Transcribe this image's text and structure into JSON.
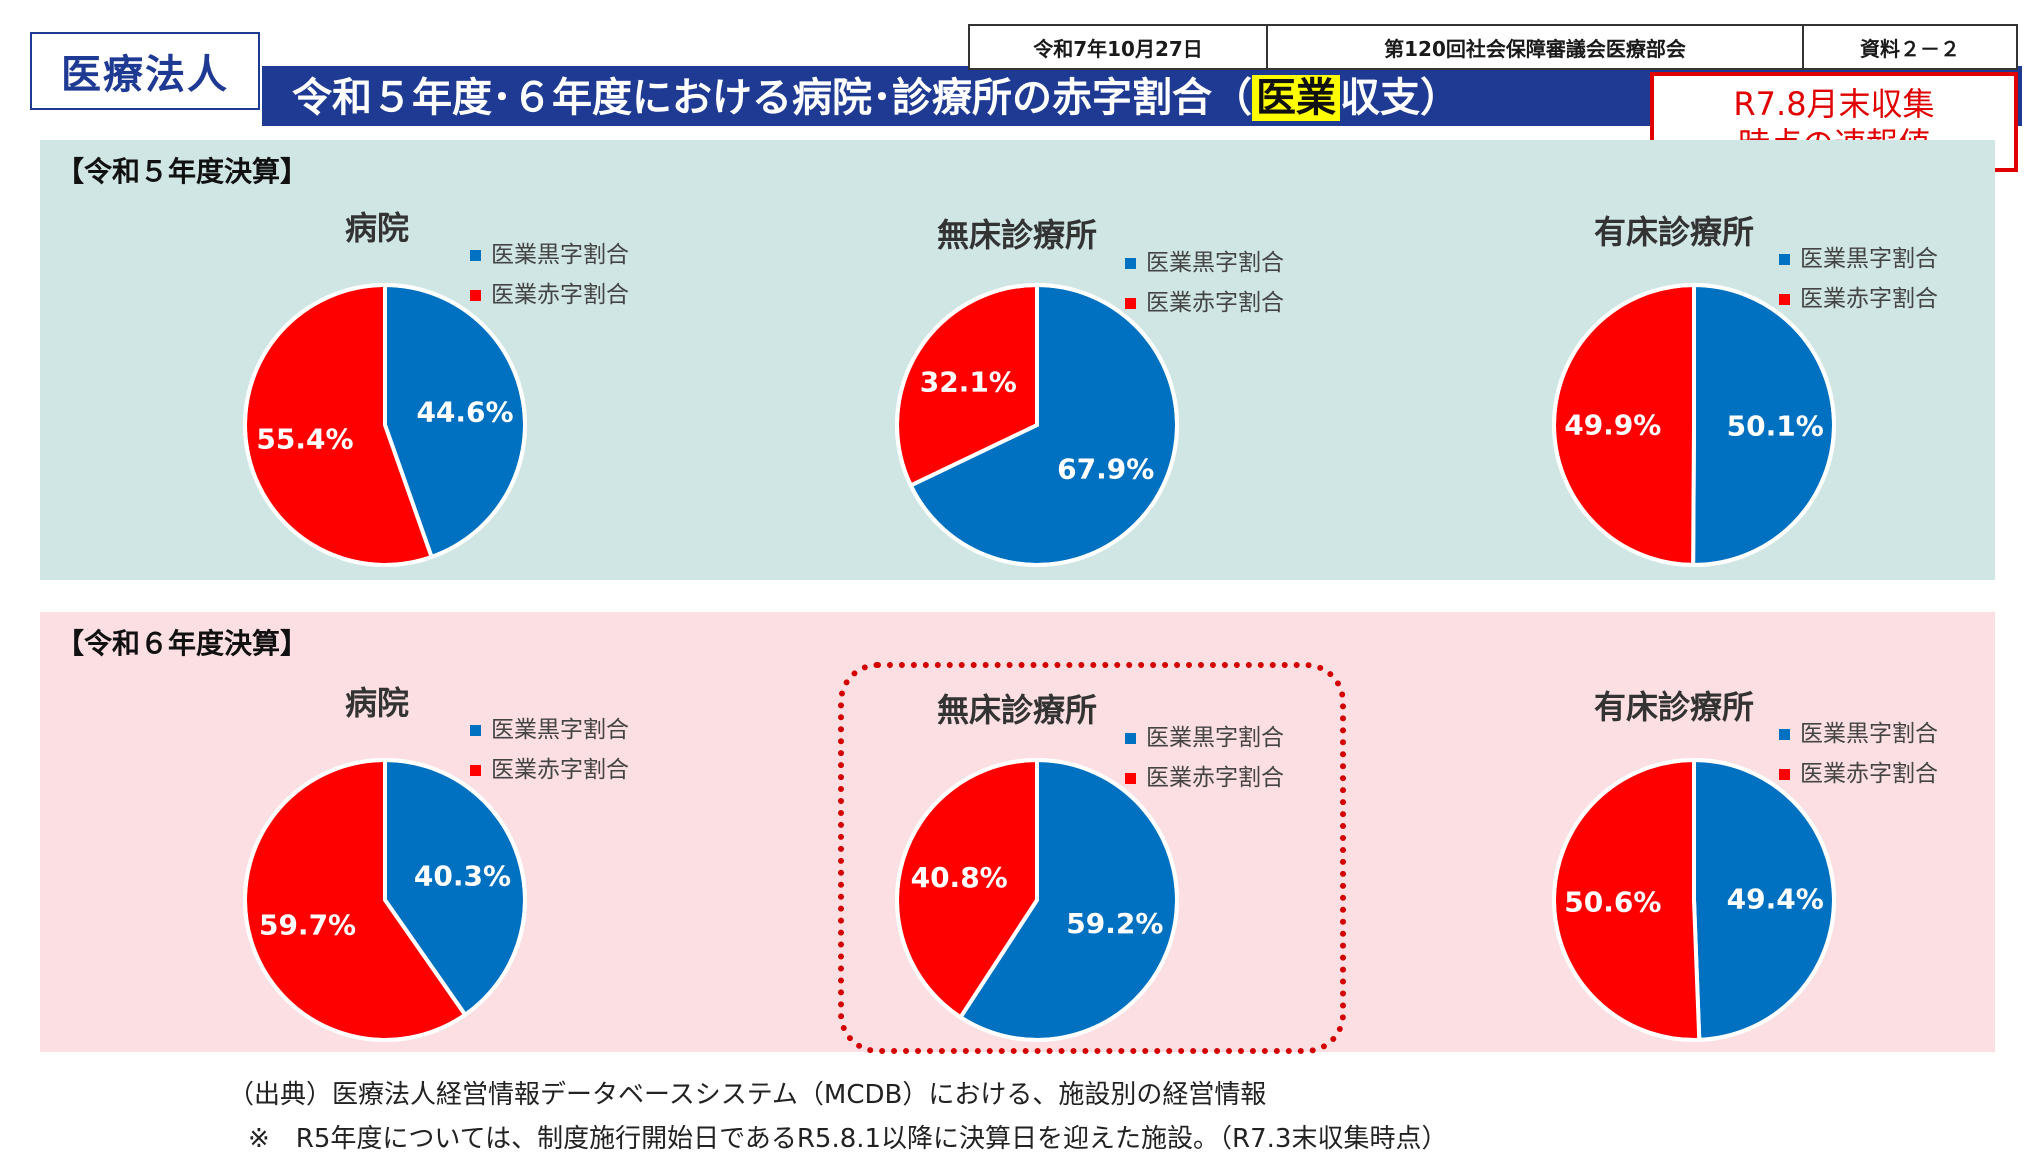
{
  "header": {
    "badge": "医療法人",
    "title_pre": "令和５年度･６年度における病院･診療所の赤字割合（",
    "title_hl": "医業",
    "title_post": "収支）",
    "date": "令和7年10月27日",
    "meeting": "第120回社会保障審議会医療部会",
    "doc_no": "資料２－２",
    "notice_line1": "R7.8月末収集",
    "notice_line2": "時点の速報値"
  },
  "colors": {
    "blue": "#0070c0",
    "red": "#ff0000",
    "teal_panel": "#cfe6e4",
    "pink_panel": "#fbdfe3",
    "navy": "#1f3a93"
  },
  "panels": {
    "r5": {
      "title": "【令和５年度決算】"
    },
    "r6": {
      "title": "【令和６年度決算】"
    }
  },
  "legend": {
    "surplus": "医業黒字割合",
    "deficit": "医業赤字割合"
  },
  "chart_data": [
    {
      "type": "pie",
      "title": "病院",
      "panel": "r5",
      "categories": [
        "医業黒字割合",
        "医業赤字割合"
      ],
      "values": [
        44.6,
        55.4
      ],
      "labels": [
        "44.6%",
        "55.4%"
      ]
    },
    {
      "type": "pie",
      "title": "無床診療所",
      "panel": "r5",
      "categories": [
        "医業黒字割合",
        "医業赤字割合"
      ],
      "values": [
        67.9,
        32.1
      ],
      "labels": [
        "67.9%",
        "32.1%"
      ]
    },
    {
      "type": "pie",
      "title": "有床診療所",
      "panel": "r5",
      "categories": [
        "医業黒字割合",
        "医業赤字割合"
      ],
      "values": [
        50.1,
        49.9
      ],
      "labels": [
        "50.1%",
        "49.9%"
      ]
    },
    {
      "type": "pie",
      "title": "病院",
      "panel": "r6",
      "categories": [
        "医業黒字割合",
        "医業赤字割合"
      ],
      "values": [
        40.3,
        59.7
      ],
      "labels": [
        "40.3%",
        "59.7%"
      ]
    },
    {
      "type": "pie",
      "title": "無床診療所",
      "panel": "r6",
      "categories": [
        "医業黒字割合",
        "医業赤字割合"
      ],
      "values": [
        59.2,
        40.8
      ],
      "labels": [
        "59.2%",
        "40.8%"
      ]
    },
    {
      "type": "pie",
      "title": "有床診療所",
      "panel": "r6",
      "categories": [
        "医業黒字割合",
        "医業赤字割合"
      ],
      "values": [
        49.4,
        50.6
      ],
      "labels": [
        "49.4%",
        "50.6%"
      ]
    }
  ],
  "footer": {
    "source": "（出典）医療法人経営情報データベースシステム（MCDB）における、施設別の経営情報",
    "note": "※　R5年度については、制度施行開始日であるR5.8.1以降に決算日を迎えた施設。（R7.3末収集時点）"
  }
}
